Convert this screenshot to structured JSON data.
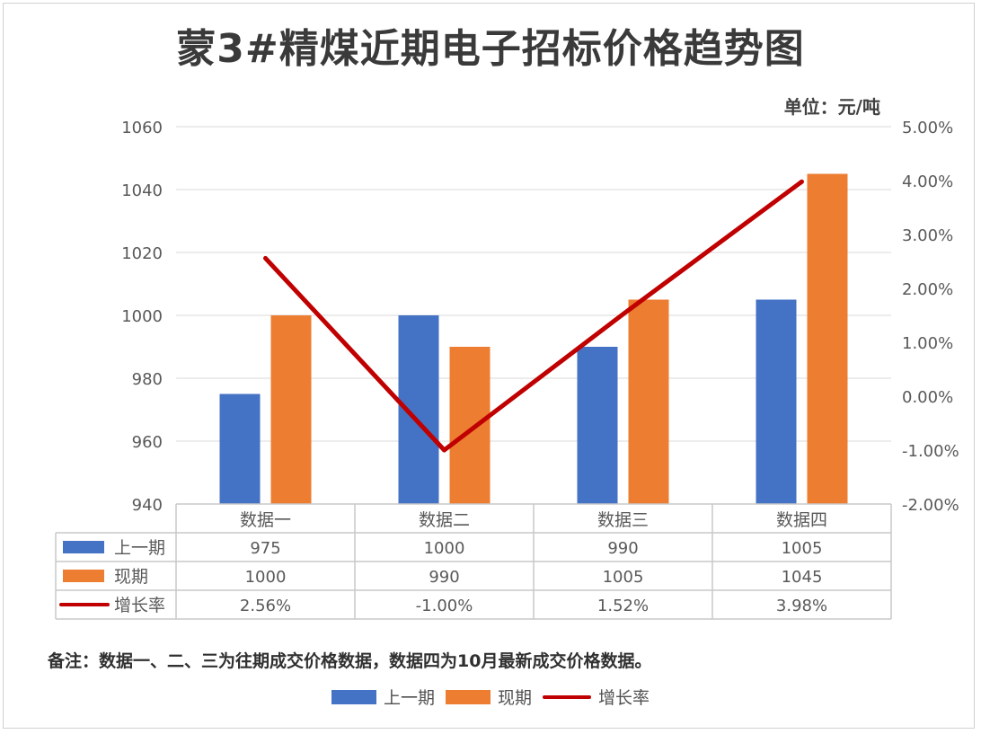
{
  "title": "蒙3#精煤近期电子招标价格趋势图",
  "unit": "单位：元/吨",
  "note": "备注：数据一、二、三为往期成交价格数据，数据四为10月最新成交价格数据。",
  "colors": {
    "prev": "#4472C4",
    "curr": "#ED7D31",
    "rate": "#C00000",
    "grid": "#d9d9d9",
    "table": "#c8c8c8"
  },
  "chart_data": {
    "type": "bar",
    "categories": [
      "数据一",
      "数据二",
      "数据三",
      "数据四"
    ],
    "series": [
      {
        "name": "上一期",
        "kind": "bar",
        "axis": "left",
        "values": [
          975,
          1000,
          990,
          1005
        ],
        "labels": [
          "975",
          "1000",
          "990",
          "1005"
        ]
      },
      {
        "name": "现期",
        "kind": "bar",
        "axis": "left",
        "values": [
          1000,
          990,
          1005,
          1045
        ],
        "labels": [
          "1000",
          "990",
          "1005",
          "1045"
        ]
      },
      {
        "name": "增长率",
        "kind": "line",
        "axis": "right",
        "values": [
          2.56,
          -1.0,
          1.52,
          3.98
        ],
        "labels": [
          "2.56%",
          "-1.00%",
          "1.52%",
          "3.98%"
        ]
      }
    ],
    "yleft": {
      "min": 940,
      "max": 1060,
      "ticks": [
        "1060",
        "1040",
        "1020",
        "1000",
        "980",
        "960",
        "940"
      ]
    },
    "yright": {
      "min": -2,
      "max": 5,
      "ticks": [
        "5.00%",
        "4.00%",
        "3.00%",
        "2.00%",
        "1.00%",
        "0.00%",
        "-1.00%",
        "-2.00%"
      ]
    },
    "legend": [
      "上一期",
      "现期",
      "增长率"
    ]
  }
}
